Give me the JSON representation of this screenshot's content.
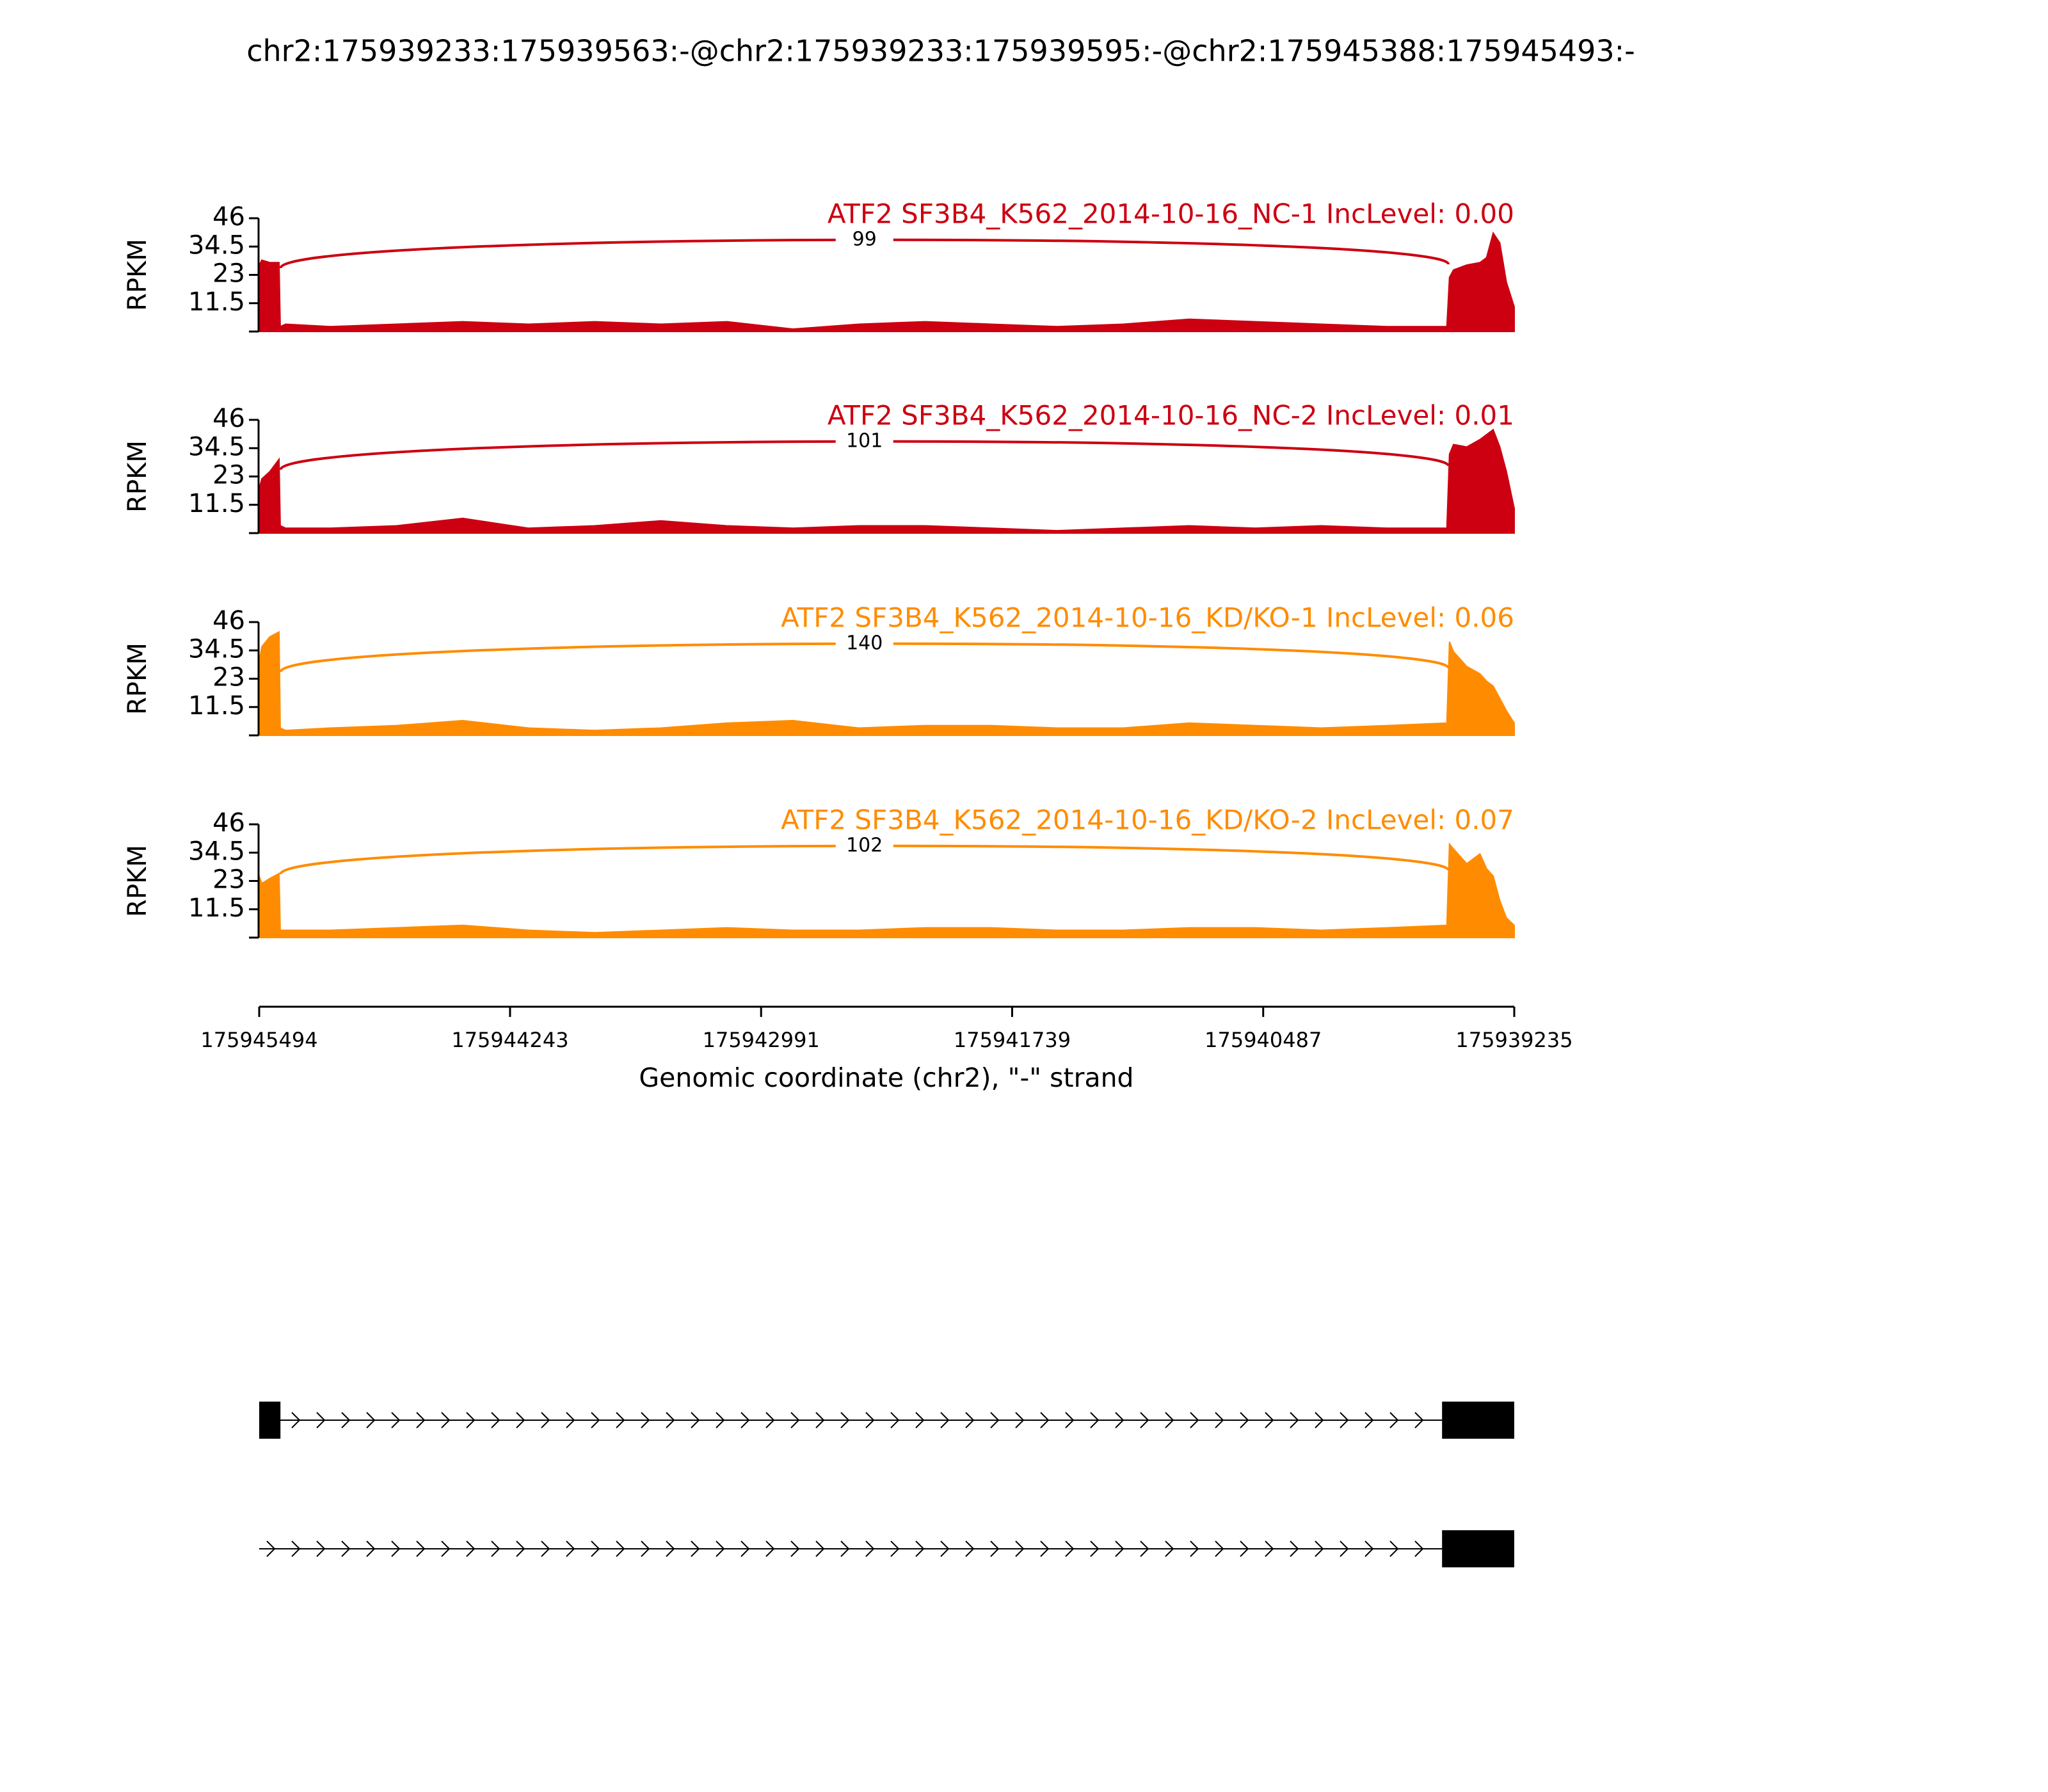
{
  "chart_data": {
    "type": "sashimi",
    "title": "chr2:175939233:175939563:-@chr2:175939233:175939595:-@chr2:175945388:175945493:-",
    "ylabel": "RPKM",
    "ylim": [
      0,
      46
    ],
    "yticks": [
      11.5,
      23,
      34.5,
      46
    ],
    "xlabel": "Genomic coordinate (chr2), \"-\" strand",
    "xlim": [
      175945494,
      175939235
    ],
    "xticks": [
      175945494,
      175944243,
      175942991,
      175941739,
      175940487,
      175939235
    ],
    "x": [
      175945494,
      175945481,
      175945441,
      175945395,
      175945389,
      175945362,
      175945138,
      175944809,
      175944479,
      175944150,
      175943821,
      175943491,
      175943162,
      175942832,
      175942503,
      175942173,
      175941844,
      175941515,
      175941185,
      175940856,
      175940526,
      175940197,
      175939867,
      175939571,
      175939558,
      175939538,
      175939472,
      175939406,
      175939373,
      175939340,
      175939307,
      175939274,
      175939235
    ],
    "junction": {
      "start": 175945388,
      "end": 175939563
    },
    "series": [
      {
        "name": "ATF2 SF3B4_K562_2014-10-16_NC-1 IncLevel: 0.00",
        "color": "#cc0011",
        "junction_count": 99,
        "values": [
          27,
          29,
          28,
          28,
          2,
          3,
          2,
          3,
          4,
          3,
          4,
          3,
          4,
          1,
          3,
          4,
          3,
          2,
          3,
          5,
          4,
          3,
          2,
          2,
          22,
          25,
          27,
          28,
          30,
          40,
          36,
          20,
          10
        ]
      },
      {
        "name": "ATF2 SF3B4_K562_2014-10-16_NC-2 IncLevel: 0.01",
        "color": "#cc0011",
        "junction_count": 101,
        "values": [
          18,
          22,
          25,
          30,
          3,
          2,
          2,
          3,
          6,
          2,
          3,
          5,
          3,
          2,
          3,
          3,
          2,
          1,
          2,
          3,
          2,
          3,
          2,
          2,
          32,
          36,
          35,
          38,
          40,
          42,
          35,
          25,
          10
        ]
      },
      {
        "name": "ATF2 SF3B4_K562_2014-10-16_KD/KO-1 IncLevel: 0.06",
        "color": "#ff8c00",
        "junction_count": 140,
        "values": [
          30,
          36,
          40,
          42,
          3,
          2,
          3,
          4,
          6,
          3,
          2,
          3,
          5,
          6,
          3,
          4,
          4,
          3,
          3,
          5,
          4,
          3,
          4,
          5,
          38,
          34,
          28,
          25,
          22,
          20,
          15,
          10,
          5
        ]
      },
      {
        "name": "ATF2 SF3B4_K562_2014-10-16_KD/KO-2 IncLevel: 0.07",
        "color": "#ff8c00",
        "junction_count": 102,
        "values": [
          25,
          22,
          24,
          26,
          3,
          3,
          3,
          4,
          5,
          3,
          2,
          3,
          4,
          3,
          3,
          4,
          4,
          3,
          3,
          4,
          4,
          3,
          4,
          5,
          38,
          36,
          30,
          34,
          28,
          25,
          15,
          8,
          5
        ]
      }
    ],
    "transcripts": [
      {
        "exons": [
          [
            175945494,
            175945388
          ],
          [
            175939595,
            175939235
          ]
        ]
      },
      {
        "exons": [
          [
            175939595,
            175939235
          ]
        ]
      }
    ]
  }
}
